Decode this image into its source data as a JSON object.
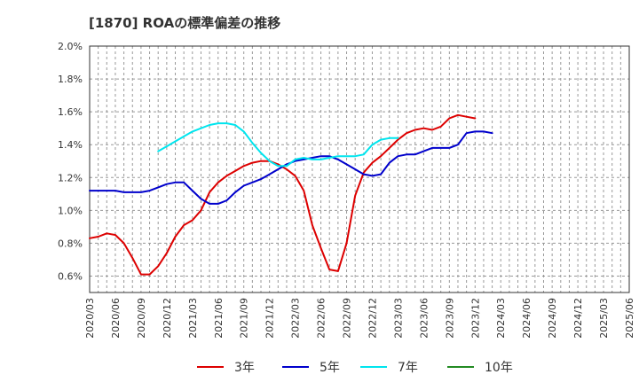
{
  "chart_data": {
    "type": "line",
    "title": "[1870]  ROAの標準偏差の推移",
    "xlabel": "",
    "ylabel": "",
    "x_ticks": [
      "2020/03",
      "2020/06",
      "2020/09",
      "2020/12",
      "2021/03",
      "2021/06",
      "2021/09",
      "2021/12",
      "2022/03",
      "2022/06",
      "2022/09",
      "2022/12",
      "2023/03",
      "2023/06",
      "2023/09",
      "2023/12",
      "2024/03",
      "2024/06",
      "2024/09",
      "2024/12",
      "2025/03",
      "2025/06"
    ],
    "y_ticks": [
      "0.6%",
      "0.8%",
      "1.0%",
      "1.2%",
      "1.4%",
      "1.6%",
      "1.8%",
      "2.0%"
    ],
    "ylim": [
      0.5,
      2.0
    ],
    "grid": true,
    "legend_position": "bottom",
    "series": [
      {
        "name": "3年",
        "color": "#dd0000",
        "start_index": 0,
        "values": [
          0.83,
          0.84,
          0.86,
          0.85,
          0.8,
          0.71,
          0.61,
          0.61,
          0.66,
          0.74,
          0.84,
          0.91,
          0.94,
          1.0,
          1.11,
          1.17,
          1.21,
          1.24,
          1.27,
          1.29,
          1.3,
          1.3,
          1.28,
          1.25,
          1.21,
          1.12,
          0.91,
          0.77,
          0.64,
          0.63,
          0.8,
          1.09,
          1.23,
          1.29,
          1.33,
          1.38,
          1.43,
          1.47,
          1.49,
          1.5,
          1.49,
          1.51,
          1.56,
          1.58,
          1.57,
          1.56
        ]
      },
      {
        "name": "5年",
        "color": "#0000cc",
        "start_index": 0,
        "values": [
          1.12,
          1.12,
          1.12,
          1.12,
          1.11,
          1.11,
          1.11,
          1.12,
          1.14,
          1.16,
          1.17,
          1.17,
          1.12,
          1.07,
          1.04,
          1.04,
          1.06,
          1.11,
          1.15,
          1.17,
          1.19,
          1.22,
          1.25,
          1.28,
          1.3,
          1.31,
          1.32,
          1.33,
          1.33,
          1.31,
          1.28,
          1.25,
          1.22,
          1.21,
          1.22,
          1.29,
          1.33,
          1.34,
          1.34,
          1.36,
          1.38,
          1.38,
          1.38,
          1.4,
          1.47,
          1.48,
          1.48,
          1.47
        ]
      },
      {
        "name": "7年",
        "color": "#00e5ee",
        "start_index": 8,
        "values": [
          1.36,
          1.39,
          1.42,
          1.45,
          1.48,
          1.5,
          1.52,
          1.53,
          1.53,
          1.52,
          1.48,
          1.41,
          1.35,
          1.3,
          1.27,
          1.27,
          1.31,
          1.32,
          1.31,
          1.31,
          1.32,
          1.33,
          1.33,
          1.33,
          1.34,
          1.4,
          1.43,
          1.44,
          1.44
        ]
      },
      {
        "name": "10年",
        "color": "#228b22",
        "start_index": 0,
        "values": []
      }
    ]
  }
}
